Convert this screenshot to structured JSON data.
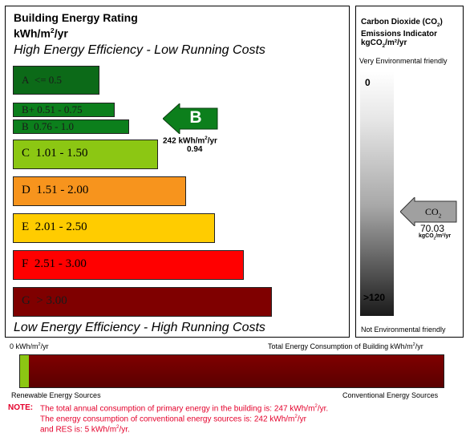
{
  "rating_panel": {
    "title": "Building Energy Rating",
    "unit_base": "kWh/m",
    "unit_sup": "2",
    "unit_tail": "/yr",
    "top_caption": "High Energy Efficiency - Low Running Costs",
    "bottom_caption": "Low Energy Efficiency - High Running Costs",
    "bands": [
      {
        "letter": "A",
        "range": "<= 0.5",
        "color": "#0c6a18"
      },
      {
        "letter": "B+",
        "range": "0.51 - 0.75",
        "color": "#0c7f1c"
      },
      {
        "letter": "B",
        "range": "0.76 - 1.0",
        "color": "#0c7f1c"
      },
      {
        "letter": "C",
        "range": "1.01 - 1.50",
        "color": "#8cc713"
      },
      {
        "letter": "D",
        "range": "1.51 - 2.00",
        "color": "#f7941d"
      },
      {
        "letter": "E",
        "range": "2.01 - 2.50",
        "color": "#ffcc00"
      },
      {
        "letter": "F",
        "range": "2.51 - 3.00",
        "color": "#ff0000"
      },
      {
        "letter": "G",
        "range": "> 3.00",
        "color": "#7f0000"
      }
    ],
    "indicator": {
      "letter": "B",
      "value_base": "242 kWh/m",
      "value_sup": "2",
      "value_tail": "/yr",
      "ratio": "0.94",
      "color": "#0c7f1c"
    }
  },
  "co2_panel": {
    "title_line1_base": "Carbon Dioxide (CO",
    "title_line1_sub": "2",
    "title_line1_tail": ")",
    "title_line2": "Emissions Indicator",
    "title_line3_base": "kgCO",
    "title_line3_sub": "2",
    "title_line3_tail": "/m²/yr",
    "top_caption": "Very Environmental friendly",
    "bottom_caption": "Not Environmental friendly",
    "scale_min": "0",
    "scale_max": ">120",
    "indicator_label_base": "CO",
    "indicator_label_sub": "2",
    "indicator_value": "70.03",
    "indicator_unit_base": "kgCO",
    "indicator_unit_sub": "2",
    "indicator_unit_tail": "/m²/yr"
  },
  "consumption_bar": {
    "left_label_base": "0 kWh/m",
    "left_label_sup": "2",
    "left_label_tail": "/yr",
    "right_label_base": "Total Energy Consumption of Building kWh/m",
    "right_label_sup": "2",
    "right_label_tail": "/yr",
    "renewable_label": "Renewable Energy Sources",
    "conventional_label": "Conventional Energy Sources",
    "renewable_color": "#8cc713",
    "conventional_color": "#7f0000",
    "renewable_fraction": 0.02
  },
  "note": {
    "prefix": "NOTE:",
    "line1_base": "The total annual consumption of primary energy in the building is: 247 kWh/m",
    "line1_sup": "2",
    "line1_tail": "/yr.",
    "line2_base": "The energy consumption of conventional energy sources is: 242 kWh/m",
    "line2_sup": "2",
    "line2_tail": "/yr",
    "line3_base": "and RES is: 5 kWh/m",
    "line3_sup": "2",
    "line3_tail": "/yr."
  }
}
